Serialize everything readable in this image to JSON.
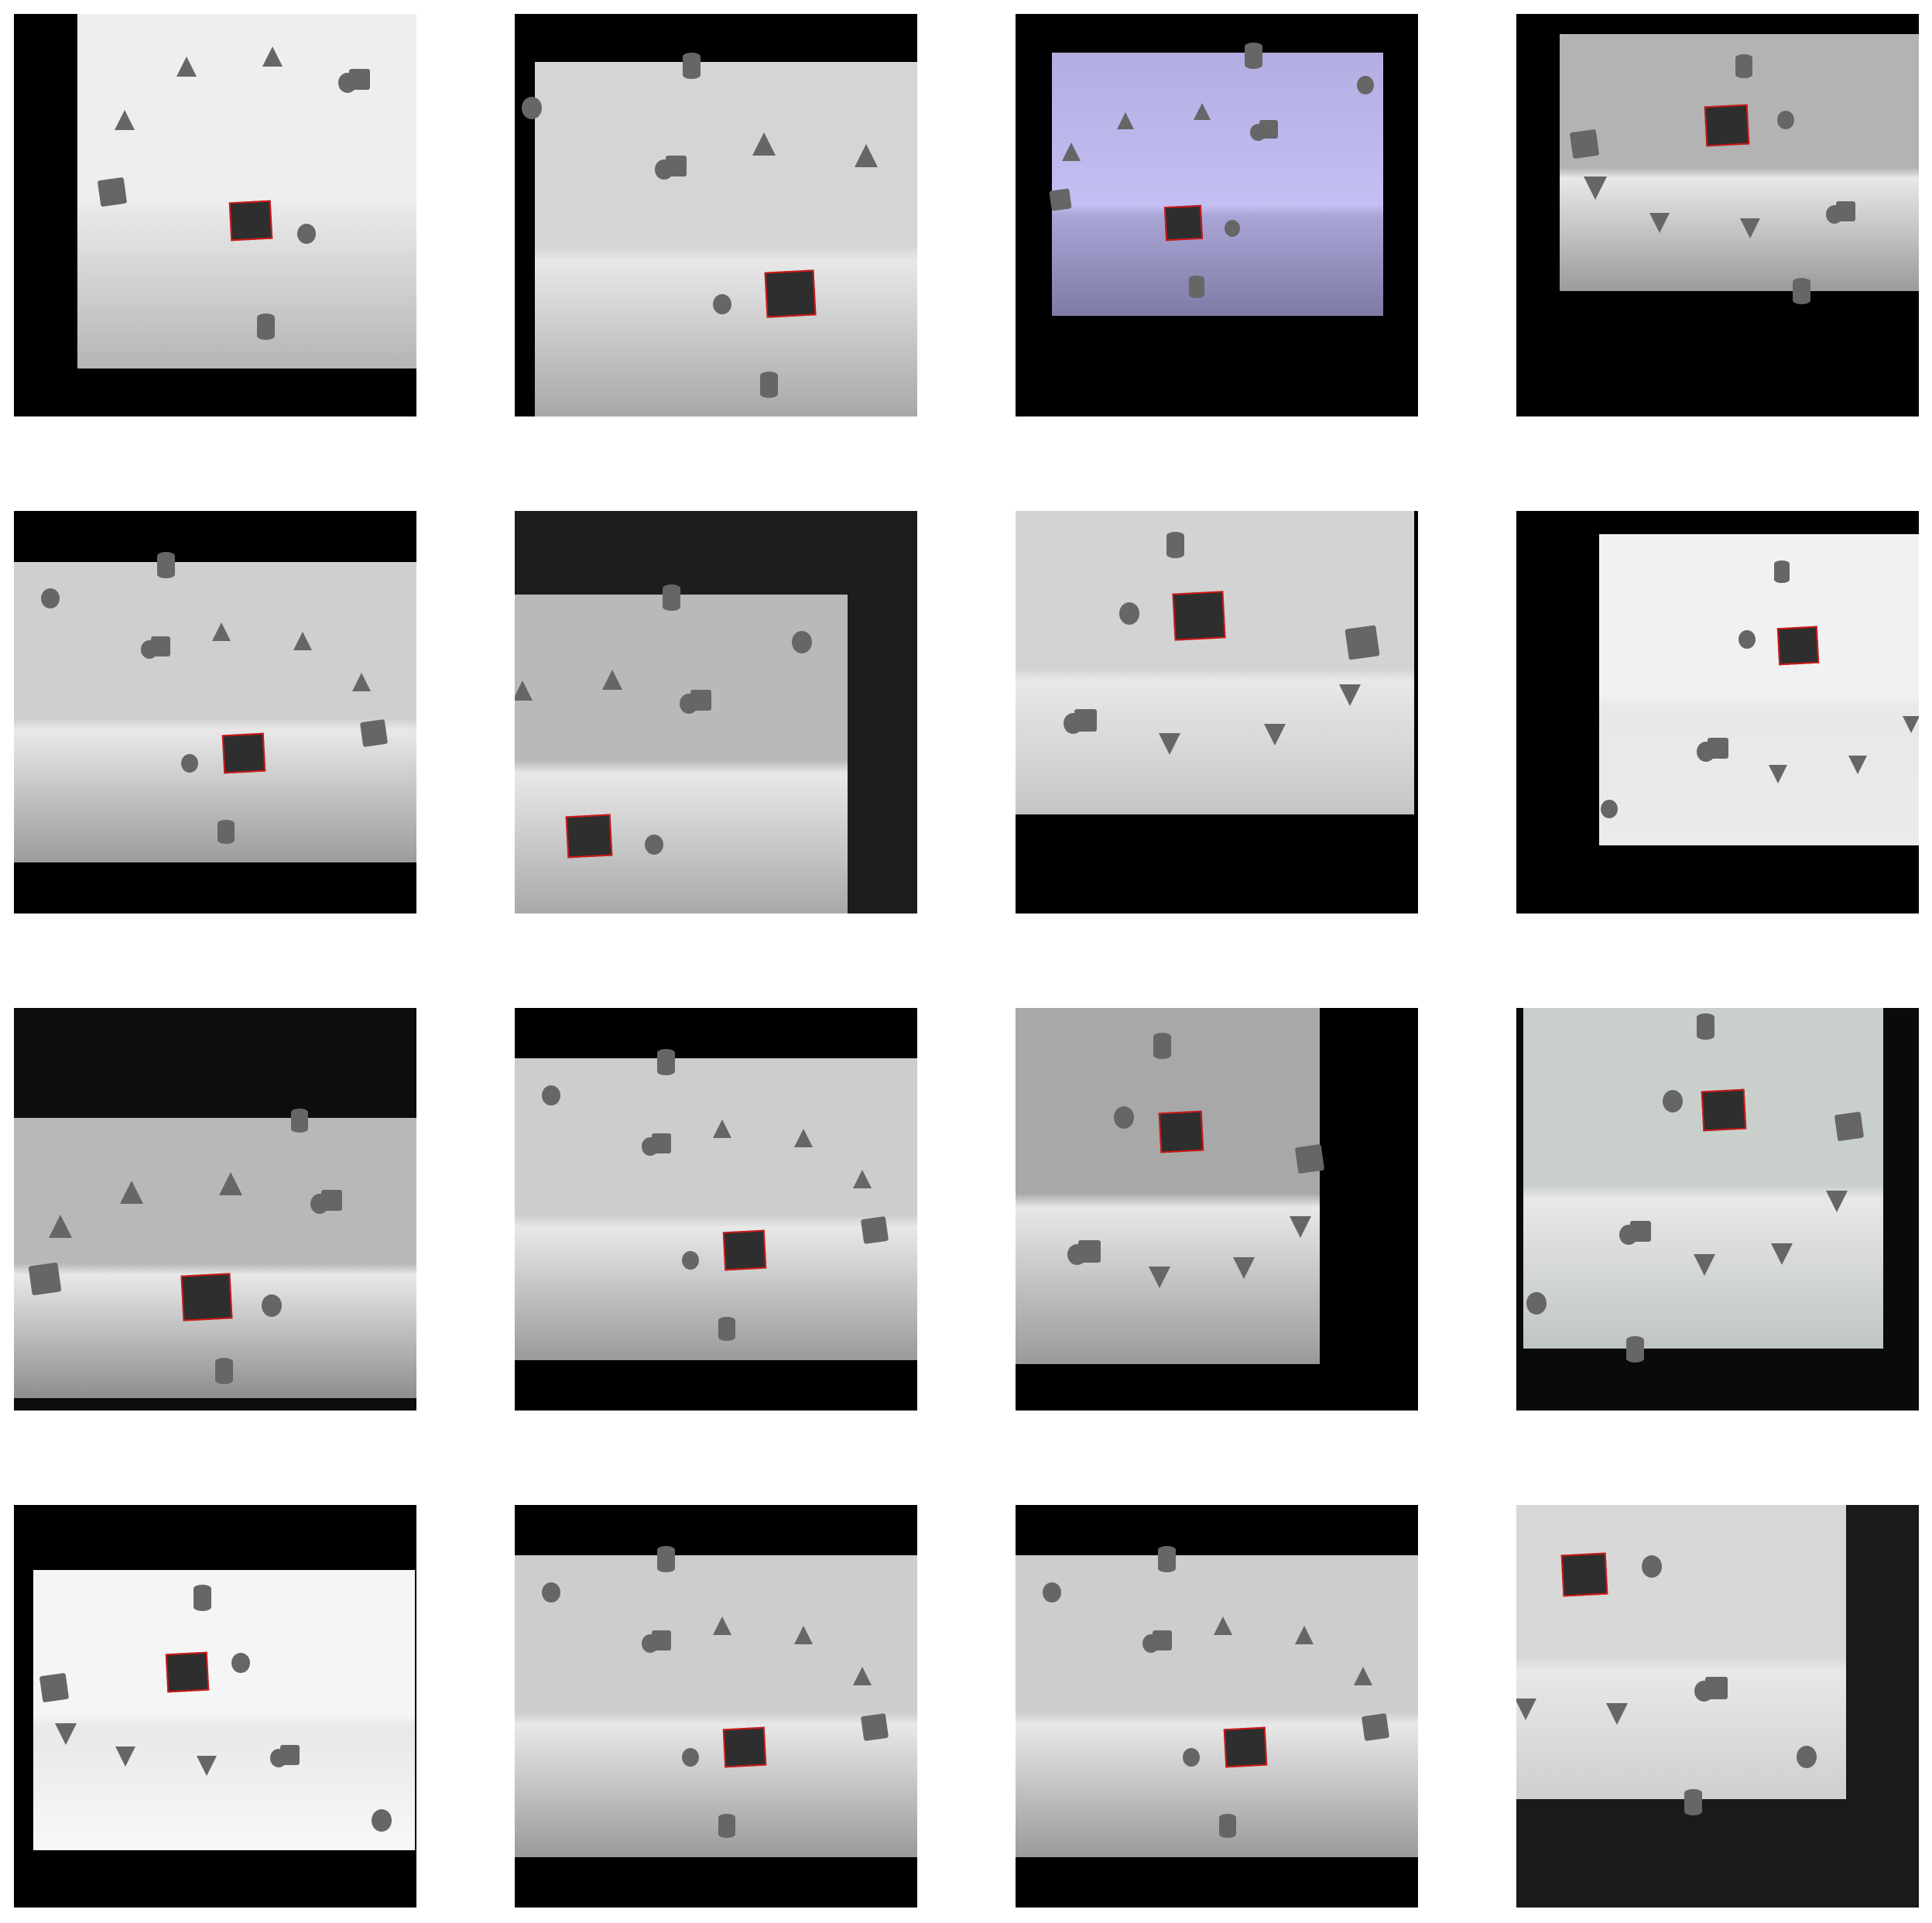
{
  "figure": {
    "rows": 4,
    "cols": 4,
    "panels": [
      {
        "id": 1,
        "scene_tint": "#eeeeee",
        "bottom_shade": "#b5b5b5",
        "letterbox_color": "#000000",
        "has_target_box": true
      },
      {
        "id": 2,
        "scene_tint": "#d5d5d5",
        "bottom_shade": "#a8a8a8",
        "letterbox_color": "#000000",
        "has_target_box": true
      },
      {
        "id": 3,
        "scene_tint": "#b7b2e6",
        "bottom_shade": "#7f7ba6",
        "letterbox_color": "#000000",
        "has_target_box": true
      },
      {
        "id": 4,
        "scene_tint": "#b3b3b3",
        "bottom_shade": "#9b9b9b",
        "letterbox_color": "#000000",
        "has_target_box": true
      },
      {
        "id": 5,
        "scene_tint": "#cfcfcf",
        "bottom_shade": "#9c9c9c",
        "letterbox_color": "#000000",
        "has_target_box": true
      },
      {
        "id": 6,
        "scene_tint": "#b9b9b9",
        "bottom_shade": "#a9a9a9",
        "letterbox_color": "#1d1d1d",
        "has_target_box": true
      },
      {
        "id": 7,
        "scene_tint": "#d3d3d3",
        "bottom_shade": "#c6c6c6",
        "letterbox_color": "#000000",
        "has_target_box": true
      },
      {
        "id": 8,
        "scene_tint": "#f1f1f1",
        "bottom_shade": "#ebebeb",
        "letterbox_color": "#000000",
        "has_target_box": true
      },
      {
        "id": 9,
        "scene_tint": "#b8b8b8",
        "bottom_shade": "#8e8e8e",
        "letterbox_color": "#0d0d0d",
        "has_target_box": true
      },
      {
        "id": 10,
        "scene_tint": "#cdcdcd",
        "bottom_shade": "#9a9a9a",
        "letterbox_color": "#000000",
        "has_target_box": true
      },
      {
        "id": 11,
        "scene_tint": "#a8a8a8",
        "bottom_shade": "#9a9a9a",
        "letterbox_color": "#000000",
        "has_target_box": true
      },
      {
        "id": 12,
        "scene_tint": "#c9d0cc",
        "bottom_shade": "#bfc6c2",
        "letterbox_color": "#0a0a0a",
        "has_target_box": true
      },
      {
        "id": 13,
        "scene_tint": "#f5f5f5",
        "bottom_shade": "#f8f8f8",
        "letterbox_color": "#000000",
        "has_target_box": true
      },
      {
        "id": 14,
        "scene_tint": "#cdcdcd",
        "bottom_shade": "#9a9a9a",
        "letterbox_color": "#000000",
        "has_target_box": true
      },
      {
        "id": 15,
        "scene_tint": "#cdcdcd",
        "bottom_shade": "#9a9a9a",
        "letterbox_color": "#000000",
        "has_target_box": true
      },
      {
        "id": 16,
        "scene_tint": "#d8d8d8",
        "bottom_shade": "#cfcfcf",
        "letterbox_color": "#1a1a1a",
        "has_target_box": true
      }
    ]
  },
  "colors": {
    "object_gray": "#666666",
    "target_fill": "#2e2e2e",
    "target_outline": "#d01818",
    "page_bg": "#ffffff"
  }
}
